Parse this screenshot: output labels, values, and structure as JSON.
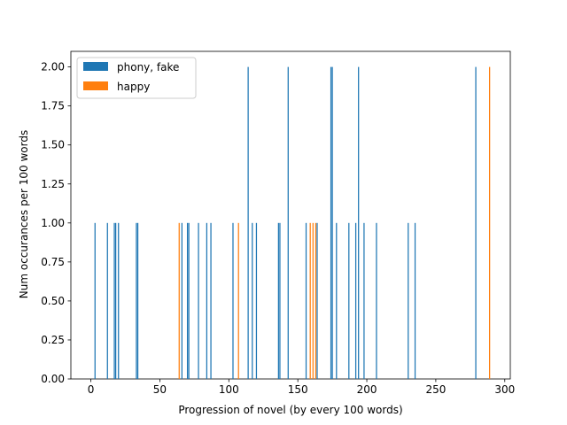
{
  "chart_data": {
    "type": "bar",
    "xlabel": "Progression of novel (by every 100 words)",
    "ylabel": "Num occurances per 100 words",
    "xlim": [
      -14.5,
      304
    ],
    "ylim": [
      0,
      2.1
    ],
    "xticks": [
      0,
      50,
      100,
      150,
      200,
      250,
      300
    ],
    "yticks": [
      0.0,
      0.25,
      0.5,
      0.75,
      1.0,
      1.25,
      1.5,
      1.75,
      2.0
    ],
    "ytick_labels": [
      "0.00",
      "0.25",
      "0.50",
      "0.75",
      "1.00",
      "1.25",
      "1.50",
      "1.75",
      "2.00"
    ],
    "legend_position": "top-left",
    "series": [
      {
        "name": "phony, fake",
        "color": "#1f77b4",
        "points": [
          {
            "x": 3,
            "y": 1
          },
          {
            "x": 12,
            "y": 1
          },
          {
            "x": 17,
            "y": 1
          },
          {
            "x": 18,
            "y": 1
          },
          {
            "x": 20,
            "y": 1
          },
          {
            "x": 33,
            "y": 1
          },
          {
            "x": 34,
            "y": 1
          },
          {
            "x": 66,
            "y": 1
          },
          {
            "x": 70,
            "y": 1
          },
          {
            "x": 71,
            "y": 1
          },
          {
            "x": 78,
            "y": 1
          },
          {
            "x": 84,
            "y": 1
          },
          {
            "x": 87,
            "y": 1
          },
          {
            "x": 103,
            "y": 1
          },
          {
            "x": 114,
            "y": 2
          },
          {
            "x": 117,
            "y": 1
          },
          {
            "x": 120,
            "y": 1
          },
          {
            "x": 136,
            "y": 1
          },
          {
            "x": 137,
            "y": 1
          },
          {
            "x": 143,
            "y": 2
          },
          {
            "x": 156,
            "y": 1
          },
          {
            "x": 164,
            "y": 1
          },
          {
            "x": 174,
            "y": 2
          },
          {
            "x": 175,
            "y": 2
          },
          {
            "x": 178,
            "y": 1
          },
          {
            "x": 187,
            "y": 1
          },
          {
            "x": 192,
            "y": 1
          },
          {
            "x": 194,
            "y": 2
          },
          {
            "x": 198,
            "y": 1
          },
          {
            "x": 207,
            "y": 1
          },
          {
            "x": 230,
            "y": 1
          },
          {
            "x": 235,
            "y": 1
          },
          {
            "x": 279,
            "y": 2
          }
        ]
      },
      {
        "name": "happy",
        "color": "#ff7f0e",
        "points": [
          {
            "x": 64,
            "y": 1
          },
          {
            "x": 107,
            "y": 1
          },
          {
            "x": 159,
            "y": 1
          },
          {
            "x": 161,
            "y": 1
          },
          {
            "x": 163,
            "y": 1
          },
          {
            "x": 289,
            "y": 2
          }
        ]
      }
    ]
  }
}
